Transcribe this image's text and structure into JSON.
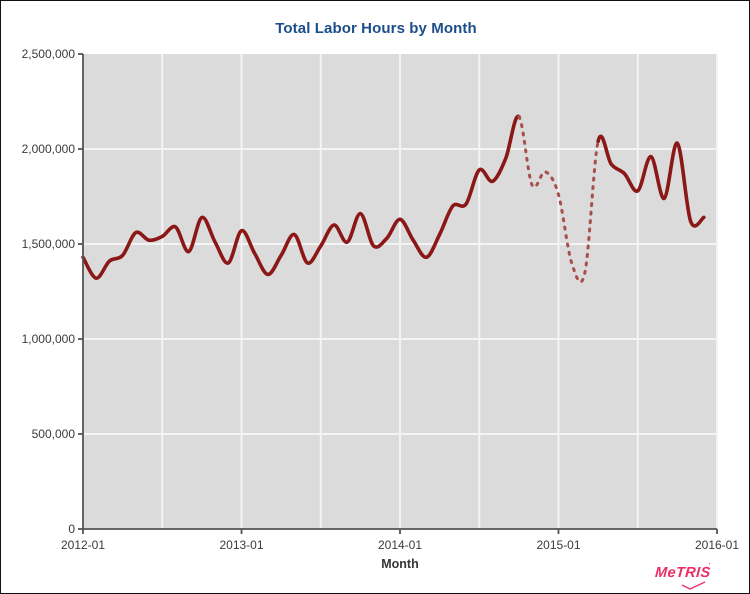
{
  "title": {
    "text": "Total Labor Hours by Month",
    "color": "#1b4e8a"
  },
  "axes": {
    "x": {
      "label": "Month",
      "tick_labels": [
        "2012-01",
        "2013-01",
        "2014-01",
        "2015-01",
        "2016-01"
      ]
    },
    "y": {
      "tick_labels": [
        "0",
        "500,000",
        "1,000,000",
        "1,500,000",
        "2,000,000",
        "2,500,000"
      ],
      "min": 0,
      "max": 2500000,
      "tick_step": 500000
    }
  },
  "logo": {
    "text": "MeTRIS",
    "tm_mark": "’",
    "color": "#ea2e68"
  },
  "colors": {
    "plot_background": "#dbdbdb",
    "gridline": "#f4f4f4",
    "axis_line": "#545454",
    "line_solid": "#8b1717",
    "line_dashed": "#a64f4b",
    "title_text": "#1b4e8a",
    "tick_text": "#3b3b3b",
    "frame_border": "#101010"
  },
  "chart_data": {
    "type": "line",
    "title": "Total Labor Hours by Month",
    "xlabel": "Month",
    "ylabel": "",
    "ylim": [
      0,
      2500000
    ],
    "x_range": [
      "2012-01",
      "2016-01"
    ],
    "grid": true,
    "x_gridline_interval_months": 6,
    "legend": "none",
    "categories": [
      "2012-01",
      "2012-02",
      "2012-03",
      "2012-04",
      "2012-05",
      "2012-06",
      "2012-07",
      "2012-08",
      "2012-09",
      "2012-10",
      "2012-11",
      "2012-12",
      "2013-01",
      "2013-02",
      "2013-03",
      "2013-04",
      "2013-05",
      "2013-06",
      "2013-07",
      "2013-08",
      "2013-09",
      "2013-10",
      "2013-11",
      "2013-12",
      "2014-01",
      "2014-02",
      "2014-03",
      "2014-04",
      "2014-05",
      "2014-06",
      "2014-07",
      "2014-08",
      "2014-09",
      "2014-10",
      "2014-11",
      "2014-12",
      "2015-01",
      "2015-02",
      "2015-03",
      "2015-04",
      "2015-05",
      "2015-06",
      "2015-07",
      "2015-08",
      "2015-09",
      "2015-10",
      "2015-11",
      "2015-12"
    ],
    "series": [
      {
        "name": "Total Labor Hours",
        "color": "#8b1717",
        "dashed_color": "#a64f4b",
        "values": [
          1430000,
          1320000,
          1410000,
          1440000,
          1560000,
          1520000,
          1540000,
          1590000,
          1460000,
          1640000,
          1510000,
          1400000,
          1570000,
          1450000,
          1340000,
          1440000,
          1550000,
          1400000,
          1490000,
          1600000,
          1510000,
          1660000,
          1490000,
          1530000,
          1630000,
          1520000,
          1430000,
          1550000,
          1700000,
          1710000,
          1890000,
          1830000,
          1950000,
          2170000,
          1810000,
          1880000,
          1760000,
          1400000,
          1350000,
          2040000,
          1920000,
          1870000,
          1780000,
          1960000,
          1740000,
          2030000,
          1620000,
          1640000
        ],
        "style_segments": [
          {
            "style": "solid",
            "from": "2012-01",
            "to": "2014-10"
          },
          {
            "style": "dashed",
            "from": "2014-10",
            "to": "2015-04"
          },
          {
            "style": "solid",
            "from": "2015-04",
            "to": "2015-12"
          }
        ]
      }
    ]
  }
}
